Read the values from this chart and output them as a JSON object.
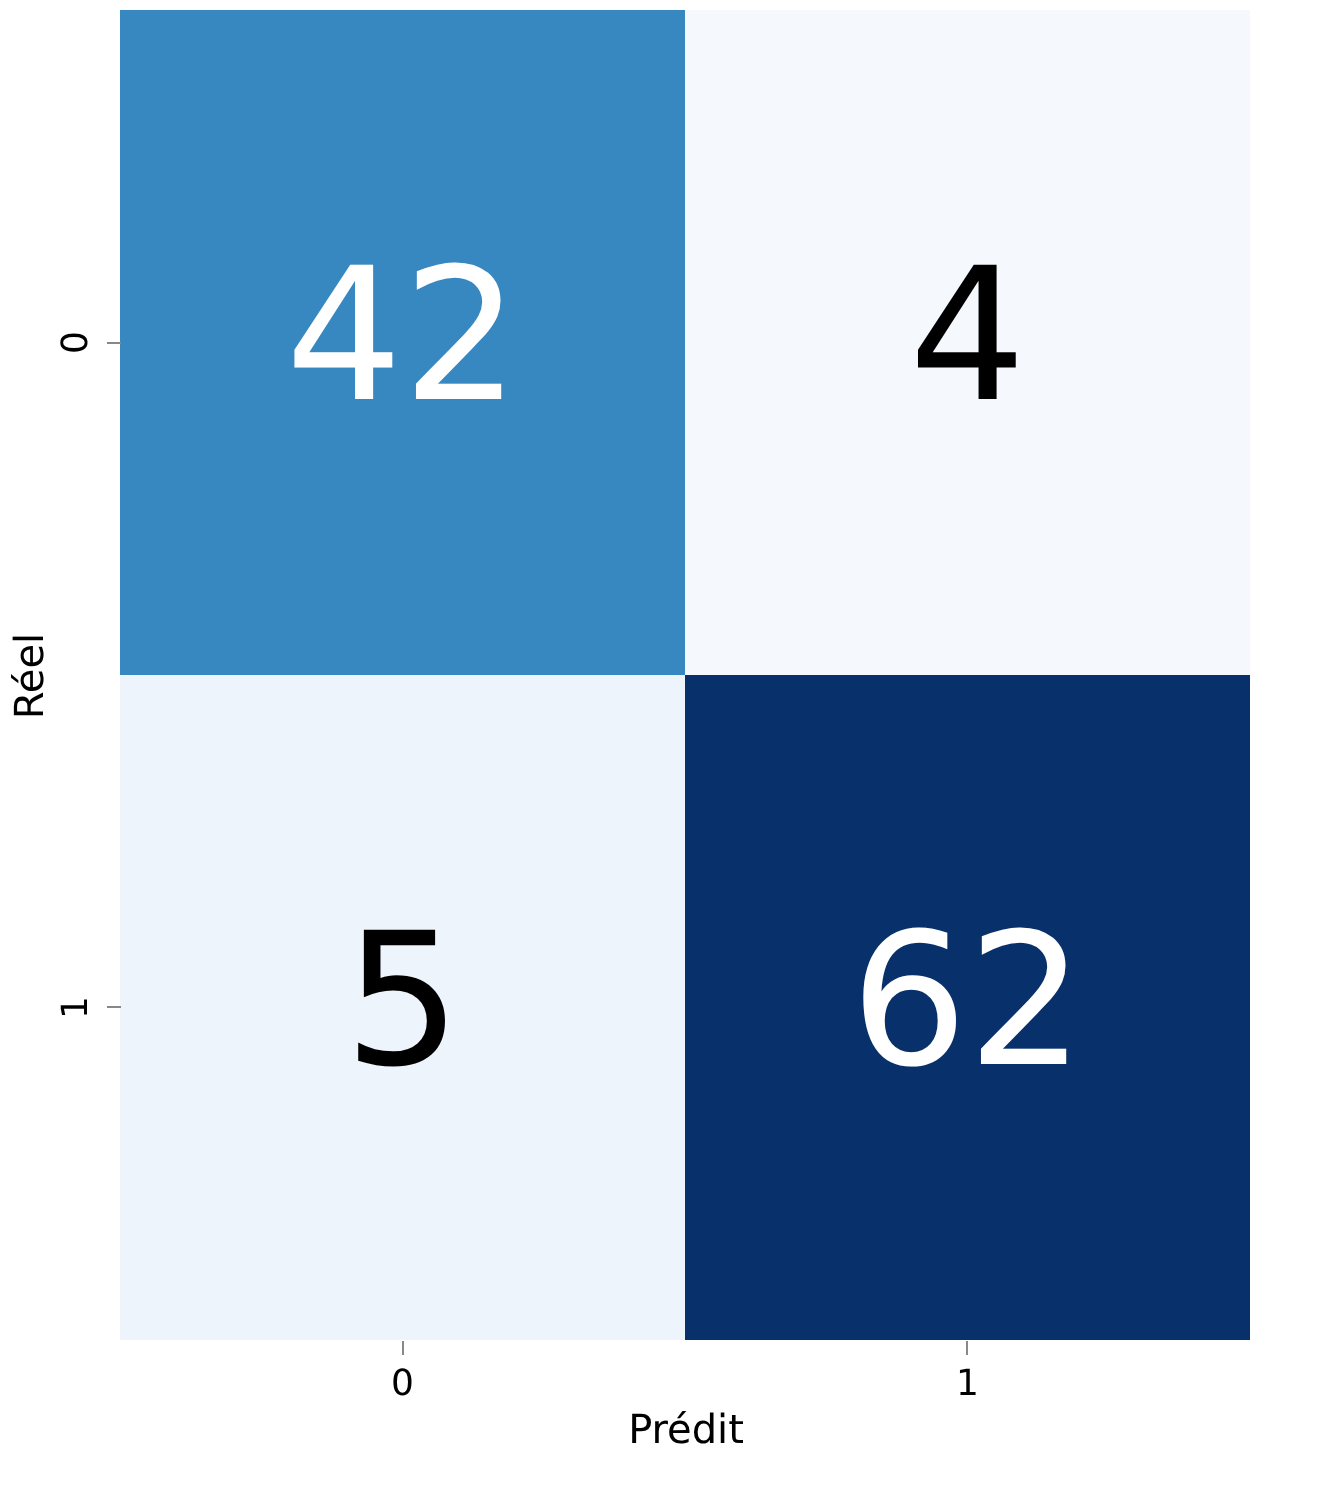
{
  "chart_data": {
    "type": "heatmap",
    "xlabel": "Prédit",
    "ylabel": "Réel",
    "categories": [
      "0",
      "1"
    ],
    "y_categories": [
      "0",
      "1"
    ],
    "cells": [
      [
        42,
        4
      ],
      [
        5,
        62
      ]
    ],
    "colors": [
      "#3787c0",
      "#f5f9fe",
      "#eef4fb",
      "#08306b"
    ],
    "data_labels": true
  }
}
